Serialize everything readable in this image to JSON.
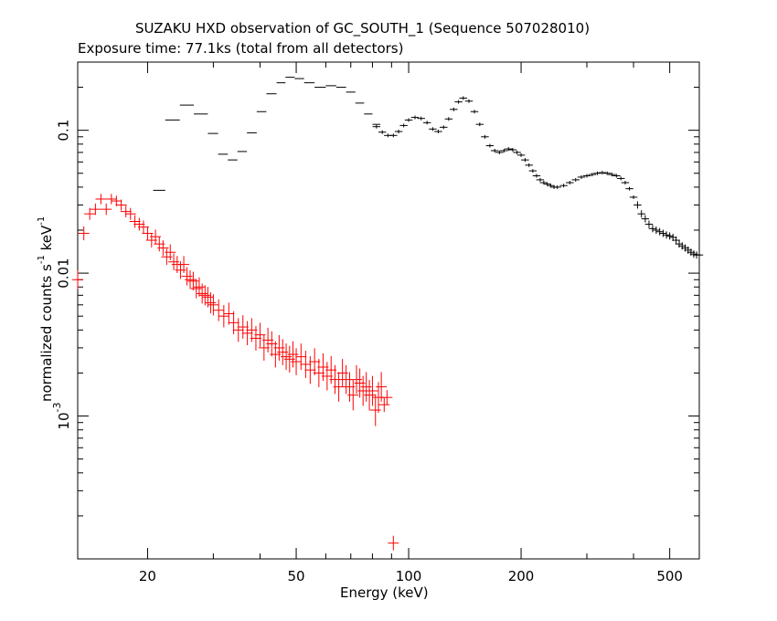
{
  "chart_data": {
    "type": "scatter",
    "title": "SUZAKU HXD observation of GC_SOUTH_1 (Sequence 507028010)",
    "subtitle": "Exposure time: 77.1ks (total from all detectors)",
    "xlabel": "Energy (keV)",
    "ylabel_parts": [
      "normalized counts s",
      "-1",
      " keV",
      "-1"
    ],
    "xscale": "log",
    "yscale": "log",
    "xlim": [
      13,
      600
    ],
    "ylim": [
      0.0001,
      0.3
    ],
    "xticks_major": [
      "20",
      "50",
      "100",
      "200",
      "500"
    ],
    "yticks_major": [
      "10^-3",
      "0.01",
      "0.1"
    ],
    "colors": {
      "pin": "#ff0000",
      "gso": "#000000",
      "axes": "#000000"
    },
    "series": [
      {
        "points": [
          [
            13.0,
            0.009
          ],
          [
            13.5,
            0.019
          ],
          [
            14.0,
            0.026
          ],
          [
            14.5,
            0.028
          ],
          [
            15.0,
            0.033
          ],
          [
            15.5,
            0.028
          ],
          [
            16.0,
            0.033
          ],
          [
            16.5,
            0.032
          ],
          [
            17.0,
            0.03
          ],
          [
            17.5,
            0.027
          ],
          [
            18.0,
            0.026
          ],
          [
            18.5,
            0.023
          ],
          [
            19.0,
            0.022
          ],
          [
            19.5,
            0.021
          ],
          [
            20.0,
            0.019
          ],
          [
            20.5,
            0.017
          ],
          [
            21.0,
            0.018
          ],
          [
            21.5,
            0.016
          ],
          [
            22.0,
            0.015
          ],
          [
            22.5,
            0.013
          ],
          [
            23.0,
            0.014
          ],
          [
            23.5,
            0.012
          ],
          [
            24.0,
            0.0115
          ],
          [
            24.5,
            0.0105
          ],
          [
            25.0,
            0.0115
          ],
          [
            25.5,
            0.0095
          ],
          [
            26.0,
            0.009
          ],
          [
            26.5,
            0.0088
          ],
          [
            27.0,
            0.0078
          ],
          [
            27.5,
            0.008
          ],
          [
            28.0,
            0.0072
          ],
          [
            28.5,
            0.007
          ],
          [
            29.0,
            0.0068
          ],
          [
            29.5,
            0.0062
          ],
          [
            30.0,
            0.006
          ],
          [
            31.0,
            0.0055
          ],
          [
            32.0,
            0.005
          ],
          [
            33.0,
            0.0052
          ],
          [
            34.0,
            0.0045
          ],
          [
            35.0,
            0.004
          ],
          [
            36.0,
            0.0042
          ],
          [
            37.0,
            0.0038
          ],
          [
            38.0,
            0.004
          ],
          [
            39.0,
            0.0035
          ],
          [
            40.0,
            0.0037
          ],
          [
            41.0,
            0.003
          ],
          [
            42.0,
            0.0034
          ],
          [
            43.0,
            0.0032
          ],
          [
            44.0,
            0.0027
          ],
          [
            45.0,
            0.003
          ],
          [
            46.0,
            0.0028
          ],
          [
            47.0,
            0.0026
          ],
          [
            48.0,
            0.0025
          ],
          [
            49.0,
            0.0027
          ],
          [
            50.0,
            0.0024
          ],
          [
            51.5,
            0.0026
          ],
          [
            53.0,
            0.0023
          ],
          [
            54.5,
            0.0021
          ],
          [
            56.0,
            0.0024
          ],
          [
            57.5,
            0.002
          ],
          [
            59.0,
            0.0022
          ],
          [
            60.5,
            0.0019
          ],
          [
            62.0,
            0.0021
          ],
          [
            63.5,
            0.0018
          ],
          [
            65.0,
            0.0016
          ],
          [
            66.5,
            0.002
          ],
          [
            68.0,
            0.0018
          ],
          [
            69.5,
            0.0016
          ],
          [
            71.0,
            0.0014
          ],
          [
            72.5,
            0.0018
          ],
          [
            74.0,
            0.0017
          ],
          [
            75.5,
            0.0015
          ],
          [
            77.0,
            0.0016
          ],
          [
            78.5,
            0.0014
          ],
          [
            80.0,
            0.0015
          ],
          [
            81.5,
            0.0011
          ],
          [
            83.0,
            0.00135
          ],
          [
            84.5,
            0.0016
          ],
          [
            86.0,
            0.0012
          ],
          [
            87.5,
            0.00135
          ],
          [
            91.0,
            0.000129
          ]
        ]
      },
      {
        "bins": [
          [
            20.7,
            22.3,
            0.038
          ],
          [
            22.3,
            24.4,
            0.118
          ],
          [
            24.4,
            26.6,
            0.15
          ],
          [
            26.6,
            29.0,
            0.13
          ],
          [
            29.0,
            30.9,
            0.095
          ],
          [
            30.9,
            32.8,
            0.068
          ],
          [
            32.8,
            34.8,
            0.062
          ],
          [
            34.8,
            36.9,
            0.071
          ],
          [
            36.9,
            39.2,
            0.096
          ],
          [
            39.2,
            41.6,
            0.135
          ],
          [
            41.6,
            44.3,
            0.18
          ],
          [
            44.3,
            46.8,
            0.215
          ],
          [
            46.8,
            49.5,
            0.235
          ],
          [
            49.5,
            52.5,
            0.23
          ],
          [
            52.5,
            56.0,
            0.215
          ],
          [
            56.0,
            60.0,
            0.2
          ],
          [
            60.0,
            64.0,
            0.205
          ],
          [
            64.0,
            68.0,
            0.2
          ],
          [
            68.0,
            72.0,
            0.185
          ],
          [
            72.0,
            76.0,
            0.155
          ],
          [
            76.0,
            80.0,
            0.13
          ],
          [
            80.0,
            84.0,
            0.11
          ]
        ],
        "points": [
          [
            82,
            0.106
          ],
          [
            85,
            0.097
          ],
          [
            88,
            0.092
          ],
          [
            91,
            0.092
          ],
          [
            94,
            0.098
          ],
          [
            97,
            0.108
          ],
          [
            100,
            0.118
          ],
          [
            104,
            0.123
          ],
          [
            108,
            0.121
          ],
          [
            112,
            0.113
          ],
          [
            116,
            0.102
          ],
          [
            120,
            0.098
          ],
          [
            124,
            0.105
          ],
          [
            128,
            0.12
          ],
          [
            132,
            0.14
          ],
          [
            136,
            0.158
          ],
          [
            140,
            0.168
          ],
          [
            145,
            0.16
          ],
          [
            150,
            0.135
          ],
          [
            155,
            0.11
          ],
          [
            160,
            0.09
          ],
          [
            165,
            0.078
          ],
          [
            170,
            0.072
          ],
          [
            175,
            0.07
          ],
          [
            180,
            0.072
          ],
          [
            185,
            0.074
          ],
          [
            190,
            0.073
          ],
          [
            195,
            0.07
          ],
          [
            200,
            0.067
          ],
          [
            205,
            0.062
          ],
          [
            210,
            0.057
          ],
          [
            215,
            0.052
          ],
          [
            220,
            0.048
          ],
          [
            225,
            0.045
          ],
          [
            230,
            0.043
          ],
          [
            235,
            0.042
          ],
          [
            240,
            0.041
          ],
          [
            245,
            0.04
          ],
          [
            250,
            0.04
          ],
          [
            260,
            0.041
          ],
          [
            270,
            0.043
          ],
          [
            280,
            0.045
          ],
          [
            290,
            0.047
          ],
          [
            300,
            0.048
          ],
          [
            310,
            0.049
          ],
          [
            320,
            0.05
          ],
          [
            330,
            0.0505
          ],
          [
            340,
            0.05
          ],
          [
            350,
            0.049
          ],
          [
            360,
            0.048
          ],
          [
            370,
            0.046
          ],
          [
            380,
            0.043
          ],
          [
            390,
            0.039
          ],
          [
            400,
            0.034
          ],
          [
            410,
            0.03
          ],
          [
            420,
            0.026
          ],
          [
            430,
            0.024
          ],
          [
            440,
            0.022
          ],
          [
            450,
            0.0205
          ],
          [
            460,
            0.02
          ],
          [
            470,
            0.0195
          ],
          [
            480,
            0.019
          ],
          [
            490,
            0.0185
          ],
          [
            500,
            0.0182
          ],
          [
            510,
            0.0178
          ],
          [
            520,
            0.017
          ],
          [
            530,
            0.016
          ],
          [
            540,
            0.0155
          ],
          [
            550,
            0.015
          ],
          [
            560,
            0.0145
          ],
          [
            570,
            0.014
          ],
          [
            580,
            0.0136
          ],
          [
            590,
            0.0134
          ],
          [
            600,
            0.0134
          ]
        ]
      }
    ]
  }
}
